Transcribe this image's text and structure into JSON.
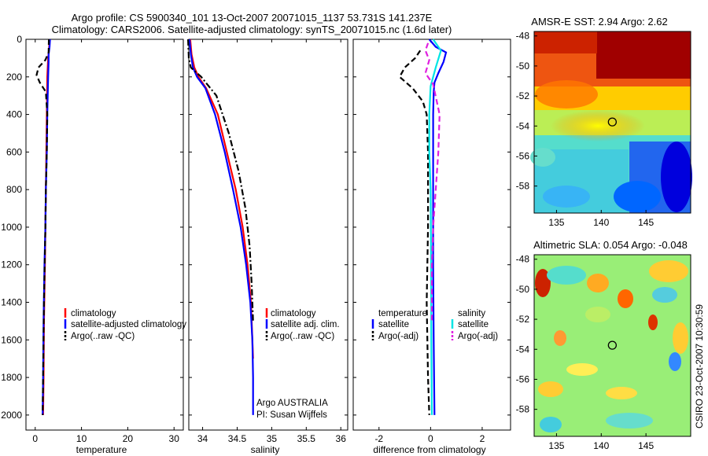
{
  "header": {
    "line1": "Argo profile: CS 5900340_101 13-Oct-2007 20071015_1137 53.731S 141.237E",
    "line2": "Climatology: CARS2006. Satellite-adjusted climatology: synTS_20071015.nc (1.6d later)"
  },
  "credits": {
    "group": "Argo AUSTRALIA",
    "pi": "PI: Susan Wijffels",
    "vertical": "CSIRO 23-Oct-2007 10:30:59"
  },
  "colors": {
    "climatology": "#ff0000",
    "satellite": "#0000ff",
    "argo": "#000000",
    "salinity_satellite": "#00e5e5",
    "salinity_argo": "#e020e0",
    "marker": "#000000"
  },
  "chart_data": [
    {
      "type": "line",
      "xlabel": "temperature",
      "ylabel": "",
      "xlim": [
        -2,
        32
      ],
      "ylim": [
        2080,
        0
      ],
      "xticks": [
        0,
        10,
        20,
        30
      ],
      "yticks": [
        0,
        200,
        400,
        600,
        800,
        1000,
        1200,
        1400,
        1600,
        1800,
        2000
      ],
      "legend": {
        "placement": "lower-right",
        "items": [
          "climatology",
          "satellite-adjusted climatology",
          "Argo(..raw -QC)"
        ]
      },
      "series": [
        {
          "name": "climatology",
          "style": "solid",
          "color": "#ff0000",
          "x": [
            3.1,
            3.0,
            2.8,
            2.6,
            2.5,
            2.4,
            2.3,
            2.2,
            2.1,
            1.9,
            1.8,
            1.7
          ],
          "y": [
            0,
            50,
            100,
            200,
            400,
            600,
            800,
            1000,
            1200,
            1500,
            1800,
            2000
          ]
        },
        {
          "name": "satellite-adjusted climatology",
          "style": "solid",
          "color": "#0000ff",
          "x": [
            3.2,
            3.1,
            2.9,
            2.9,
            2.8,
            2.6,
            2.5,
            2.3,
            2.2,
            2.0,
            1.8,
            1.7,
            1.6
          ],
          "y": [
            0,
            40,
            80,
            120,
            200,
            400,
            600,
            800,
            1000,
            1200,
            1500,
            1800,
            2000
          ]
        },
        {
          "name": "Argo(..raw -QC)",
          "style": "dashed",
          "color": "#000000",
          "x": [
            2.94,
            2.9,
            2.2,
            0.7,
            0.3,
            1.0,
            2.3,
            2.6,
            2.5,
            2.3,
            2.2,
            1.9,
            1.7,
            1.6
          ],
          "y": [
            0,
            70,
            110,
            150,
            190,
            230,
            280,
            400,
            600,
            800,
            1000,
            1400,
            1800,
            2000
          ]
        }
      ]
    },
    {
      "type": "line",
      "xlabel": "salinity",
      "ylabel": "",
      "xlim": [
        33.8,
        36.1
      ],
      "ylim": [
        2080,
        0
      ],
      "xticks": [
        34,
        34.5,
        35,
        35.5,
        36
      ],
      "legend": {
        "placement": "lower-right",
        "items": [
          "climatology",
          "satellite adj. clim.",
          "Argo(..raw -QC)"
        ]
      },
      "series": [
        {
          "name": "climatology",
          "style": "solid",
          "color": "#ff0000",
          "x": [
            33.82,
            33.84,
            33.88,
            33.94,
            34.05,
            34.22,
            34.35,
            34.48,
            34.58,
            34.65,
            34.7,
            34.72,
            34.73
          ],
          "y": [
            0,
            80,
            150,
            200,
            260,
            400,
            600,
            800,
            1000,
            1200,
            1400,
            1600,
            1700
          ]
        },
        {
          "name": "satellite adj. clim.",
          "style": "solid",
          "color": "#0000ff",
          "x": [
            33.81,
            33.83,
            33.86,
            33.92,
            34.04,
            34.18,
            34.32,
            34.44,
            34.55,
            34.63,
            34.69,
            34.72,
            34.73,
            34.73
          ],
          "y": [
            0,
            80,
            150,
            200,
            260,
            400,
            600,
            800,
            1000,
            1200,
            1400,
            1600,
            1800,
            2000
          ]
        },
        {
          "name": "Argo(..raw -QC)",
          "style": "dashdot",
          "color": "#000000",
          "x": [
            33.79,
            33.8,
            33.83,
            33.98,
            34.2,
            34.38,
            34.52,
            34.62,
            34.68,
            34.71,
            34.73
          ],
          "y": [
            0,
            100,
            150,
            200,
            300,
            500,
            700,
            900,
            1100,
            1300,
            1500
          ]
        }
      ]
    },
    {
      "type": "line",
      "xlabel": "difference from climatology",
      "ylabel": "",
      "xlim": [
        -3,
        3.1
      ],
      "ylim": [
        2080,
        0
      ],
      "xticks": [
        -2,
        0,
        2
      ],
      "legend": {
        "placement": "lower-left",
        "items": [
          "temperature",
          "satellite",
          "Argo(-adj)",
          "salinity",
          "satellite",
          "Argo(-adj)"
        ]
      },
      "series": [
        {
          "name": "satellite",
          "group": "temperature",
          "style": "solid",
          "color": "#0000ff",
          "x": [
            -0.05,
            0.2,
            0.6,
            0.5,
            0.3,
            0.15,
            0.12,
            0.1,
            0.1,
            0.1,
            0.12,
            0.15
          ],
          "y": [
            0,
            40,
            70,
            120,
            180,
            230,
            280,
            400,
            800,
            1200,
            1600,
            2000
          ]
        },
        {
          "name": "Argo(-adj)",
          "group": "temperature",
          "style": "dashed",
          "color": "#000000",
          "x": [
            -0.4,
            -0.6,
            -1.0,
            -1.2,
            -0.7,
            -0.3,
            -0.15,
            -0.1,
            -0.1,
            -0.15,
            -0.1,
            -0.05
          ],
          "y": [
            60,
            100,
            150,
            200,
            260,
            330,
            400,
            600,
            1000,
            1400,
            1800,
            2000
          ]
        },
        {
          "name": "satellite",
          "group": "salinity",
          "style": "solid",
          "color": "#00e5e5",
          "x": [
            0.1,
            0.4,
            0.2,
            0.0,
            -0.05,
            -0.05,
            0.0,
            0.02,
            0.03,
            0.05
          ],
          "y": [
            0,
            60,
            150,
            250,
            400,
            600,
            800,
            1200,
            1600,
            2000
          ]
        },
        {
          "name": "Argo(-adj)",
          "group": "salinity",
          "style": "dashed",
          "color": "#e020e0",
          "x": [
            -0.1,
            -0.2,
            -0.05,
            -0.2,
            0.1,
            0.35,
            0.3,
            0.2,
            0.1,
            0.05,
            0.05
          ],
          "y": [
            20,
            60,
            110,
            180,
            240,
            400,
            600,
            800,
            1000,
            1200,
            1500
          ]
        }
      ]
    },
    {
      "type": "heatmap",
      "title": "AMSR-E SST: 2.94  Argo: 2.62",
      "xlim": [
        132.5,
        150
      ],
      "ylim": [
        -59.8,
        -47.7
      ],
      "xticks": [
        135,
        140,
        145
      ],
      "yticks": [
        -48,
        -50,
        -52,
        -54,
        -56,
        -58
      ],
      "colormap": "jet",
      "marker": {
        "lon": 141.237,
        "lat": -53.731
      }
    },
    {
      "type": "heatmap",
      "title": "Altimetric SLA: 0.054  Argo: -0.048",
      "xlim": [
        132.5,
        150
      ],
      "ylim": [
        -59.8,
        -47.7
      ],
      "xticks": [
        135,
        140,
        145
      ],
      "yticks": [
        -48,
        -50,
        -52,
        -54,
        -56,
        -58
      ],
      "colormap": "jet",
      "marker": {
        "lon": 141.237,
        "lat": -53.731
      }
    }
  ]
}
